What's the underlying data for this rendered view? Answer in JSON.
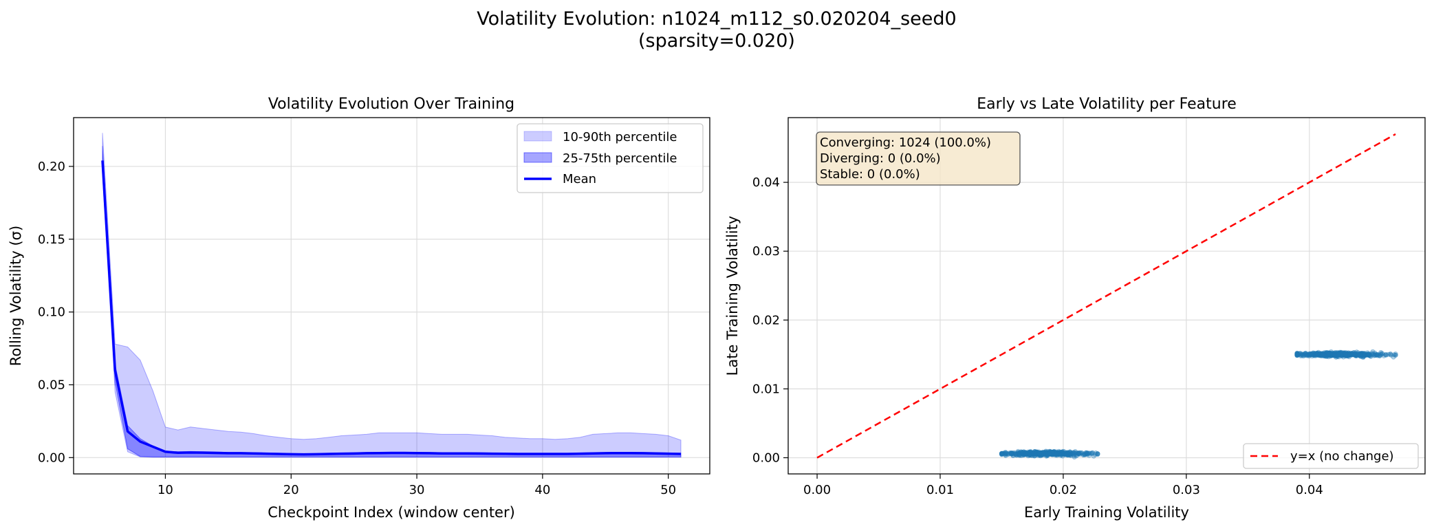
{
  "figure": {
    "title_line1": "Volatility Evolution: n1024_m112_s0.020204_seed0",
    "title_line2": "(sparsity=0.020)"
  },
  "chart_data": [
    {
      "type": "area",
      "title": "Volatility Evolution Over Training",
      "xlabel": "Checkpoint Index (window center)",
      "ylabel": "Rolling Volatility (σ)",
      "xlim": [
        2.7,
        53.3
      ],
      "ylim": [
        -0.0112,
        0.2335
      ],
      "xticks": [
        10,
        20,
        30,
        40,
        50
      ],
      "xtick_labels": [
        "10",
        "20",
        "30",
        "40",
        "50"
      ],
      "yticks": [
        0.0,
        0.05,
        0.1,
        0.15,
        0.2
      ],
      "ytick_labels": [
        "0.00",
        "0.05",
        "0.10",
        "0.15",
        "0.20"
      ],
      "grid": true,
      "legend_position": "upper-right",
      "x": [
        5,
        6,
        7,
        8,
        9,
        10,
        11,
        12,
        13,
        14,
        15,
        16,
        17,
        18,
        19,
        20,
        21,
        22,
        23,
        24,
        25,
        26,
        27,
        28,
        29,
        30,
        31,
        32,
        33,
        34,
        35,
        36,
        37,
        38,
        39,
        40,
        41,
        42,
        43,
        44,
        45,
        46,
        47,
        48,
        49,
        50,
        51
      ],
      "series": [
        {
          "name": "10-90th percentile",
          "kind": "band",
          "color": "#0000ff",
          "opacity": 0.2,
          "upper": [
            0.223,
            0.078,
            0.076,
            0.067,
            0.046,
            0.021,
            0.019,
            0.021,
            0.02,
            0.019,
            0.018,
            0.0175,
            0.0165,
            0.015,
            0.014,
            0.013,
            0.0125,
            0.013,
            0.014,
            0.015,
            0.0155,
            0.016,
            0.017,
            0.017,
            0.017,
            0.017,
            0.0165,
            0.016,
            0.016,
            0.016,
            0.0155,
            0.015,
            0.014,
            0.0135,
            0.013,
            0.013,
            0.0125,
            0.013,
            0.014,
            0.016,
            0.0165,
            0.017,
            0.017,
            0.0165,
            0.016,
            0.015,
            0.012
          ],
          "lower": [
            0.195,
            0.045,
            0.004,
            0.0005,
            0.0003,
            0.0003,
            0.0003,
            0.0003,
            0.0003,
            0.0003,
            0.0003,
            0.0003,
            0.0003,
            0.0003,
            0.0003,
            0.0003,
            0.0003,
            0.0003,
            0.0003,
            0.0003,
            0.0003,
            0.0003,
            0.0003,
            0.0003,
            0.0003,
            0.0003,
            0.0003,
            0.0003,
            0.0003,
            0.0003,
            0.0003,
            0.0003,
            0.0003,
            0.0003,
            0.0003,
            0.0003,
            0.0003,
            0.0003,
            0.0003,
            0.0003,
            0.0003,
            0.0003,
            0.0003,
            0.0003,
            0.0003,
            0.0003,
            0.0003
          ]
        },
        {
          "name": "25-75th percentile",
          "kind": "band",
          "color": "#0000ff",
          "opacity": 0.35,
          "upper": [
            0.214,
            0.064,
            0.022,
            0.013,
            0.008,
            0.0045,
            0.004,
            0.0042,
            0.0041,
            0.0039,
            0.0036,
            0.0035,
            0.0034,
            0.0032,
            0.003,
            0.0028,
            0.0027,
            0.0028,
            0.003,
            0.0032,
            0.0034,
            0.0035,
            0.0036,
            0.0037,
            0.0037,
            0.0036,
            0.0035,
            0.0034,
            0.0034,
            0.0034,
            0.0033,
            0.0032,
            0.0031,
            0.003,
            0.003,
            0.003,
            0.003,
            0.003,
            0.0032,
            0.0034,
            0.0035,
            0.0036,
            0.0036,
            0.0035,
            0.0034,
            0.0032,
            0.003
          ],
          "lower": [
            0.198,
            0.052,
            0.006,
            0.0008,
            0.0005,
            0.0005,
            0.0005,
            0.0005,
            0.0005,
            0.0005,
            0.0005,
            0.0005,
            0.0005,
            0.0005,
            0.0005,
            0.0005,
            0.0005,
            0.0005,
            0.0005,
            0.0005,
            0.0005,
            0.0005,
            0.0005,
            0.0005,
            0.0005,
            0.0005,
            0.0005,
            0.0005,
            0.0005,
            0.0005,
            0.0005,
            0.0005,
            0.0005,
            0.0005,
            0.0005,
            0.0005,
            0.0005,
            0.0005,
            0.0005,
            0.0005,
            0.0005,
            0.0005,
            0.0005,
            0.0005,
            0.0005,
            0.0005,
            0.0005
          ]
        },
        {
          "name": "Mean",
          "kind": "line",
          "color": "#0000ff",
          "values": [
            0.204,
            0.06,
            0.018,
            0.011,
            0.0075,
            0.004,
            0.0033,
            0.0035,
            0.0034,
            0.0032,
            0.003,
            0.003,
            0.0029,
            0.0027,
            0.0025,
            0.0023,
            0.0022,
            0.0023,
            0.0025,
            0.0027,
            0.0028,
            0.003,
            0.0031,
            0.0032,
            0.0032,
            0.0031,
            0.003,
            0.0029,
            0.0029,
            0.0029,
            0.0028,
            0.0027,
            0.0026,
            0.0025,
            0.0025,
            0.0025,
            0.0025,
            0.0025,
            0.0027,
            0.0029,
            0.003,
            0.0031,
            0.0031,
            0.003,
            0.0029,
            0.0027,
            0.0025
          ]
        }
      ]
    },
    {
      "type": "scatter",
      "title": "Early vs Late Volatility per Feature",
      "xlabel": "Early Training Volatility",
      "ylabel": "Late Training Volatility",
      "xlim": [
        -0.00235,
        0.0494
      ],
      "ylim": [
        -0.00235,
        0.0494
      ],
      "xticks": [
        0.0,
        0.01,
        0.02,
        0.03,
        0.04
      ],
      "xtick_labels": [
        "0.00",
        "0.01",
        "0.02",
        "0.03",
        "0.04"
      ],
      "yticks": [
        0.0,
        0.01,
        0.02,
        0.03,
        0.04
      ],
      "ytick_labels": [
        "0.00",
        "0.01",
        "0.02",
        "0.03",
        "0.04"
      ],
      "grid": true,
      "legend_position": "lower-right",
      "point_color": "#1f77b4",
      "clusters": [
        {
          "x_range": [
            0.015,
            0.0228
          ],
          "x_center": 0.0185,
          "y_center": 0.0006,
          "y_spread": 0.0004,
          "points": 512
        },
        {
          "x_range": [
            0.039,
            0.047
          ],
          "x_center": 0.0425,
          "y_center": 0.015,
          "y_spread": 0.0004,
          "points": 512
        }
      ],
      "reference_line": {
        "name": "y=x (no change)",
        "color": "#ff0000",
        "style": "dashed",
        "x": [
          0.0,
          0.047
        ],
        "y": [
          0.0,
          0.047
        ]
      },
      "annotation": {
        "line1": "Converging: 1024 (100.0%)",
        "line2": "Diverging: 0 (0.0%)",
        "line3": "Stable: 0 (0.0%)",
        "bg_color": "#f5e6c8"
      }
    }
  ]
}
